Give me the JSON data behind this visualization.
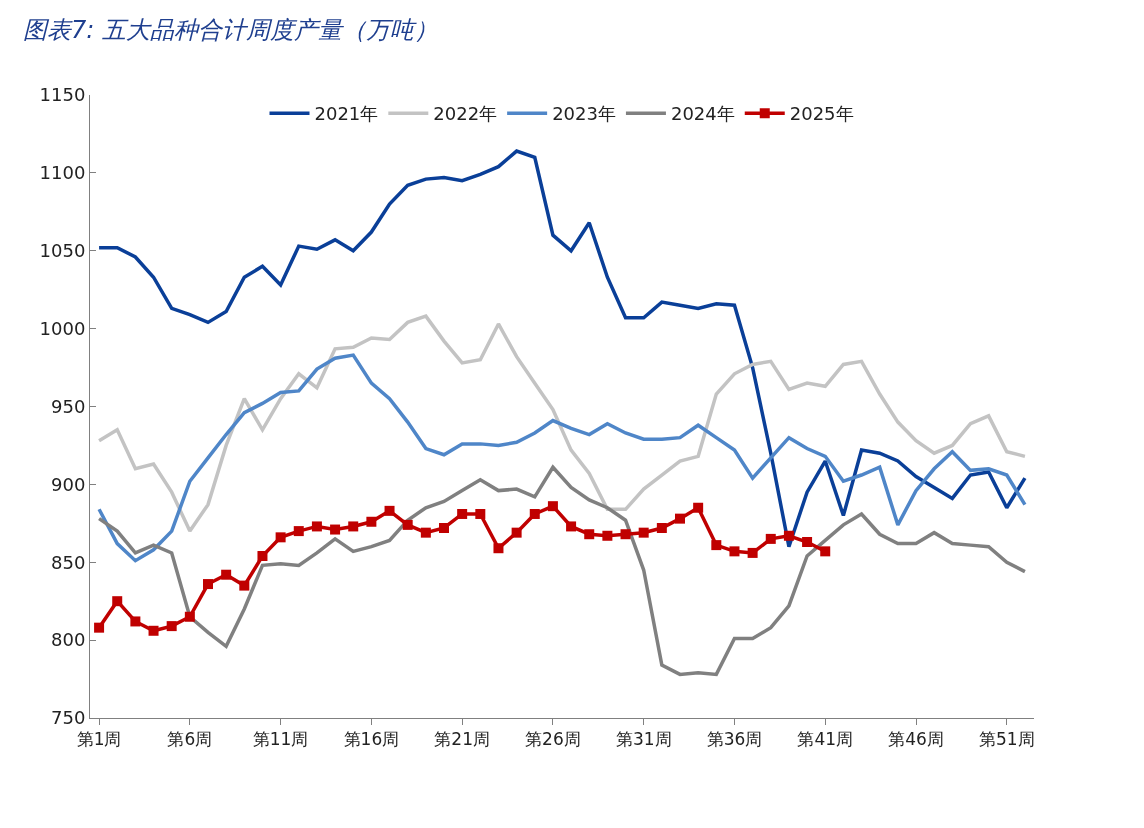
{
  "chart_data": {
    "type": "line",
    "title": "图表7: 五大品种合计周度产量（万吨）",
    "categories": [
      "第1周",
      null,
      null,
      null,
      null,
      "第6周",
      null,
      null,
      null,
      null,
      "第11周",
      null,
      null,
      null,
      null,
      "第16周",
      null,
      null,
      null,
      null,
      "第21周",
      null,
      null,
      null,
      null,
      "第26周",
      null,
      null,
      null,
      null,
      "第31周",
      null,
      null,
      null,
      null,
      "第36周",
      null,
      null,
      null,
      null,
      "第41周",
      null,
      null,
      null,
      null,
      "第46周",
      null,
      null,
      null,
      null,
      "第51周",
      null
    ],
    "ylim": [
      750,
      1150
    ],
    "yticks": [
      750,
      800,
      850,
      900,
      950,
      1000,
      1050,
      1100,
      1150
    ],
    "legend": "top",
    "line_style": "solid",
    "series": [
      {
        "name": "2021年",
        "color": "#0a3f98",
        "marker": "none",
        "values": [
          1052,
          1052,
          1046,
          1033,
          1013,
          1009,
          1004,
          1011,
          1033,
          1040,
          1028,
          1053,
          1051,
          1057,
          1050,
          1062,
          1080,
          1092,
          1096,
          1097,
          1095,
          1099,
          1104,
          1114,
          1110,
          1060,
          1050,
          1068,
          1033,
          1007,
          1007,
          1017,
          1015,
          1013,
          1016,
          1015,
          975,
          920,
          860,
          895,
          915,
          880,
          922,
          920,
          915,
          905,
          898,
          891,
          906,
          908,
          885,
          904
        ]
      },
      {
        "name": "2022年",
        "color": "#c3c3c3",
        "marker": "none",
        "values": [
          928,
          935,
          910,
          913,
          895,
          870,
          887,
          925,
          955,
          935,
          955,
          971,
          962,
          987,
          988,
          994,
          993,
          1004,
          1008,
          992,
          978,
          980,
          1003,
          982,
          965,
          948,
          922,
          907,
          884,
          884,
          897,
          906,
          915,
          918,
          958,
          971,
          977,
          979,
          961,
          965,
          963,
          977,
          979,
          958,
          940,
          928,
          920,
          925,
          939,
          944,
          921,
          918
        ]
      },
      {
        "name": "2023年",
        "color": "#4f86c8",
        "marker": "none",
        "values": [
          884,
          862,
          851,
          858,
          870,
          902,
          917,
          932,
          946,
          952,
          959,
          960,
          974,
          981,
          983,
          965,
          955,
          940,
          923,
          919,
          926,
          926,
          925,
          927,
          933,
          941,
          936,
          932,
          939,
          933,
          929,
          929,
          930,
          938,
          930,
          922,
          904,
          917,
          930,
          923,
          918,
          902,
          906,
          911,
          874,
          896,
          910,
          921,
          909,
          910,
          906,
          887
        ]
      },
      {
        "name": "2024年",
        "color": "#808080",
        "marker": "none",
        "values": [
          878,
          870,
          856,
          861,
          856,
          815,
          805,
          796,
          820,
          848,
          849,
          848,
          856,
          865,
          857,
          860,
          864,
          877,
          885,
          889,
          896,
          903,
          896,
          897,
          892,
          911,
          898,
          890,
          885,
          877,
          845,
          784,
          778,
          779,
          778,
          801,
          801,
          808,
          822,
          854,
          864,
          874,
          881,
          868,
          862,
          862,
          869,
          862,
          861,
          860,
          850,
          844
        ]
      },
      {
        "name": "2025年",
        "color": "#c00000",
        "marker": "square",
        "values": [
          808,
          825,
          812,
          806,
          809,
          815,
          836,
          842,
          835,
          854,
          866,
          870,
          873,
          871,
          873,
          876,
          883,
          874,
          869,
          872,
          881,
          881,
          859,
          869,
          881,
          886,
          873,
          868,
          867,
          868,
          869,
          872,
          878,
          885,
          861,
          857,
          856,
          865,
          867,
          863,
          857,
          null,
          null,
          null,
          null,
          null,
          null,
          null,
          null,
          null,
          null,
          null
        ]
      }
    ]
  }
}
